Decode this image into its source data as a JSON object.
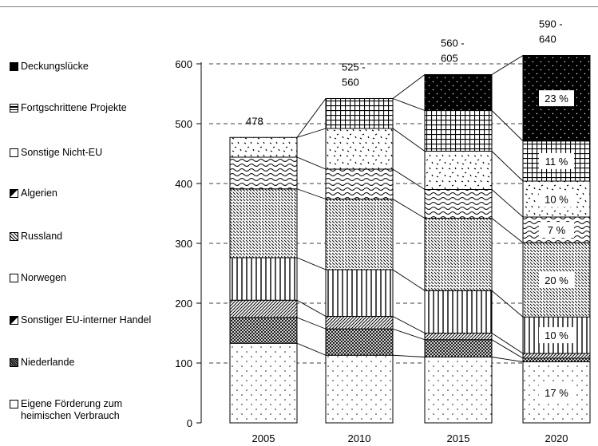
{
  "chart_data": {
    "type": "bar",
    "stacked": true,
    "categories": [
      "2005",
      "2010",
      "2015",
      "2020"
    ],
    "ylim": [
      0,
      600
    ],
    "yticks": [
      0,
      100,
      200,
      300,
      400,
      500,
      600
    ],
    "grid": true,
    "legend_position": "left",
    "totals": [
      "478",
      "525 -\n560",
      "560 -\n605",
      "590 -\n640"
    ],
    "series": [
      {
        "name": "Eigene Förderung zum\nheimischen  Verbrauch",
        "pattern": "dots-sparse",
        "values": [
          133,
          113,
          110,
          102
        ],
        "labels": [
          "",
          "",
          "",
          "17 %"
        ]
      },
      {
        "name": "Niederlande",
        "pattern": "crosshatch-dense",
        "values": [
          43,
          44,
          29,
          6
        ],
        "labels": [
          "",
          "",
          "",
          ""
        ]
      },
      {
        "name": "Sonstiger EU-interner Handel",
        "pattern": "diag-hatch-dense",
        "values": [
          29,
          21,
          11,
          8
        ],
        "labels": [
          "",
          "",
          "",
          ""
        ]
      },
      {
        "name": "Norwegen",
        "pattern": "vertical-lines",
        "values": [
          71,
          78,
          71,
          61
        ],
        "labels": [
          "",
          "",
          "",
          "10 %"
        ]
      },
      {
        "name": "Russland",
        "pattern": "diag-dashes",
        "values": [
          115,
          118,
          121,
          124
        ],
        "labels": [
          "",
          "",
          "",
          "20 %"
        ]
      },
      {
        "name": "Algerien",
        "pattern": "waves",
        "values": [
          53,
          50,
          48,
          43
        ],
        "labels": [
          "",
          "",
          "",
          "7 %"
        ]
      },
      {
        "name": "Sonstige Nicht-EU",
        "pattern": "scatter-dots",
        "values": [
          33,
          68,
          64,
          60
        ],
        "labels": [
          "",
          "",
          "",
          "10 %"
        ]
      },
      {
        "name": "Fortgschrittene Projekte",
        "pattern": "grid",
        "values": [
          0,
          50,
          68,
          67
        ],
        "labels": [
          "",
          "",
          "",
          "11 %"
        ]
      },
      {
        "name": "Deckungslücke",
        "pattern": "dots-dense-black",
        "values": [
          0,
          0,
          60,
          143
        ],
        "labels": [
          "",
          "",
          "",
          "23 %"
        ]
      }
    ]
  }
}
